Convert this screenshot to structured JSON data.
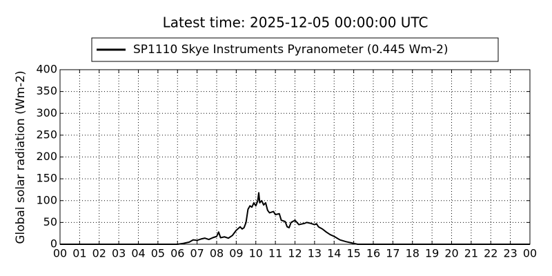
{
  "chart_data": {
    "type": "line",
    "title": "Latest time: 2025-12-05 00:00:00 UTC",
    "y_label": "Global solar radiation (Wm-2)",
    "grid": true,
    "legend_position": "upper center",
    "xlim": [
      0,
      24
    ],
    "xticks": [
      {
        "value": 0,
        "label": "00"
      },
      {
        "value": 1,
        "label": "01"
      },
      {
        "value": 2,
        "label": "02"
      },
      {
        "value": 3,
        "label": "03"
      },
      {
        "value": 4,
        "label": "04"
      },
      {
        "value": 5,
        "label": "05"
      },
      {
        "value": 6,
        "label": "06"
      },
      {
        "value": 7,
        "label": "07"
      },
      {
        "value": 8,
        "label": "08"
      },
      {
        "value": 9,
        "label": "09"
      },
      {
        "value": 10,
        "label": "10"
      },
      {
        "value": 11,
        "label": "11"
      },
      {
        "value": 12,
        "label": "12"
      },
      {
        "value": 13,
        "label": "13"
      },
      {
        "value": 14,
        "label": "14"
      },
      {
        "value": 15,
        "label": "15"
      },
      {
        "value": 16,
        "label": "16"
      },
      {
        "value": 17,
        "label": "17"
      },
      {
        "value": 18,
        "label": "18"
      },
      {
        "value": 19,
        "label": "19"
      },
      {
        "value": 20,
        "label": "20"
      },
      {
        "value": 21,
        "label": "21"
      },
      {
        "value": 22,
        "label": "22"
      },
      {
        "value": 23,
        "label": "23"
      },
      {
        "value": 24,
        "label": "00"
      }
    ],
    "ylim": [
      0,
      400
    ],
    "yticks": [
      0,
      50,
      100,
      150,
      200,
      250,
      300,
      350,
      400
    ],
    "x": [
      0,
      6,
      6.3,
      6.6,
      6.8,
      7,
      7.2,
      7.4,
      7.6,
      7.8,
      8,
      8.1,
      8.2,
      8.4,
      8.6,
      8.8,
      9,
      9.2,
      9.3,
      9.4,
      9.5,
      9.6,
      9.7,
      9.8,
      9.9,
      10,
      10.1,
      10.15,
      10.2,
      10.3,
      10.4,
      10.5,
      10.6,
      10.7,
      10.9,
      11,
      11.2,
      11.3,
      11.5,
      11.6,
      11.7,
      11.8,
      12,
      12.1,
      12.2,
      12.5,
      12.6,
      12.8,
      13,
      13.1,
      13.2,
      13.4,
      13.6,
      13.8,
      14,
      14.3,
      14.6,
      15,
      15.2,
      24
    ],
    "series": [
      {
        "name": "SP1110 Skye Instruments Pyranometer (0.445 Wm-2)",
        "color": "#000000",
        "values": [
          0,
          0,
          2,
          5,
          10,
          9,
          12,
          14,
          11,
          15,
          18,
          28,
          15,
          17,
          14,
          20,
          32,
          40,
          35,
          38,
          50,
          80,
          88,
          85,
          95,
          88,
          100,
          118,
          95,
          100,
          90,
          95,
          78,
          72,
          75,
          68,
          70,
          55,
          52,
          40,
          38,
          50,
          55,
          50,
          45,
          48,
          50,
          48,
          45,
          47,
          40,
          35,
          28,
          22,
          18,
          10,
          6,
          2,
          0,
          0
        ]
      }
    ]
  }
}
